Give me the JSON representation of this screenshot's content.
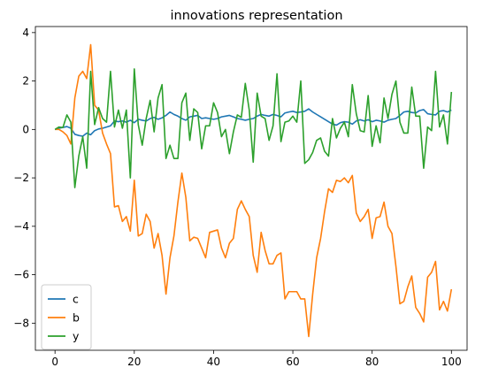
{
  "chart_data": {
    "type": "line",
    "title": "innovations representation",
    "xlabel": "",
    "ylabel": "",
    "xlim": [
      -4.95,
      103.95
    ],
    "ylim": [
      -9.12,
      4.25
    ],
    "xticks": [
      0,
      20,
      40,
      60,
      80,
      100
    ],
    "yticks": [
      -8,
      -6,
      -4,
      -2,
      0,
      2,
      4
    ],
    "grid": false,
    "legend": "lower-left",
    "series": [
      {
        "name": "c",
        "color": "#1f77b4",
        "values": [
          0,
          0.05,
          0.08,
          0.12,
          0.05,
          -0.2,
          -0.25,
          -0.28,
          -0.15,
          -0.22,
          -0.05,
          0.02,
          0.05,
          0.1,
          0.15,
          0.35,
          0.32,
          0.35,
          0.3,
          0.38,
          0.28,
          0.42,
          0.38,
          0.35,
          0.45,
          0.5,
          0.42,
          0.48,
          0.58,
          0.72,
          0.62,
          0.55,
          0.45,
          0.38,
          0.52,
          0.55,
          0.58,
          0.45,
          0.48,
          0.45,
          0.42,
          0.45,
          0.52,
          0.55,
          0.58,
          0.52,
          0.45,
          0.42,
          0.38,
          0.42,
          0.45,
          0.55,
          0.62,
          0.58,
          0.55,
          0.62,
          0.58,
          0.52,
          0.68,
          0.72,
          0.75,
          0.7,
          0.72,
          0.75,
          0.85,
          0.72,
          0.62,
          0.52,
          0.42,
          0.32,
          0.22,
          0.18,
          0.28,
          0.32,
          0.3,
          0.22,
          0.35,
          0.4,
          0.35,
          0.4,
          0.32,
          0.38,
          0.35,
          0.3,
          0.38,
          0.42,
          0.45,
          0.58,
          0.72,
          0.75,
          0.7,
          0.68,
          0.78,
          0.82,
          0.65,
          0.62,
          0.6,
          0.75,
          0.78,
          0.72,
          0.8
        ]
      },
      {
        "name": "b",
        "color": "#ff7f0e",
        "values": [
          0,
          0.0,
          -0.1,
          -0.25,
          -0.6,
          1.3,
          2.2,
          2.4,
          2.1,
          3.5,
          1.0,
          0.8,
          -0.15,
          -0.6,
          -1.0,
          -3.2,
          -3.15,
          -3.8,
          -3.6,
          -4.2,
          -2.1,
          -4.4,
          -4.3,
          -3.5,
          -3.8,
          -4.9,
          -4.3,
          -5.2,
          -6.8,
          -5.3,
          -4.4,
          -3.0,
          -1.8,
          -2.8,
          -4.6,
          -4.45,
          -4.5,
          -4.9,
          -5.3,
          -4.25,
          -4.2,
          -4.15,
          -4.9,
          -5.3,
          -4.7,
          -4.5,
          -3.3,
          -2.95,
          -3.3,
          -3.6,
          -5.2,
          -5.9,
          -4.25,
          -5.0,
          -5.55,
          -5.55,
          -5.2,
          -5.1,
          -7.0,
          -6.7,
          -6.7,
          -6.7,
          -7.0,
          -7.0,
          -8.55,
          -6.8,
          -5.3,
          -4.5,
          -3.4,
          -2.45,
          -2.6,
          -2.1,
          -2.15,
          -2.0,
          -2.2,
          -1.9,
          -3.45,
          -3.8,
          -3.6,
          -3.3,
          -4.5,
          -3.65,
          -3.6,
          -3.0,
          -4.0,
          -4.3,
          -5.65,
          -7.2,
          -7.1,
          -6.5,
          -6.05,
          -7.35,
          -7.6,
          -7.95,
          -6.1,
          -5.9,
          -5.45,
          -7.45,
          -7.1,
          -7.5,
          -6.6
        ]
      },
      {
        "name": "y",
        "color": "#2ca02c",
        "values": [
          0,
          0.1,
          0.08,
          0.6,
          0.3,
          -2.4,
          -1.1,
          -0.3,
          -1.6,
          2.4,
          0.2,
          0.9,
          0.45,
          0.3,
          2.4,
          0.1,
          0.8,
          0.05,
          0.8,
          -2.0,
          2.5,
          0.2,
          -0.65,
          0.45,
          1.2,
          -0.1,
          1.3,
          1.85,
          -1.2,
          -0.65,
          -1.2,
          -1.2,
          1.1,
          1.5,
          -0.45,
          0.85,
          0.7,
          -0.8,
          0.15,
          0.15,
          1.1,
          0.7,
          -0.3,
          0.0,
          -1.0,
          -0.1,
          0.6,
          0.5,
          1.9,
          0.8,
          -1.35,
          1.5,
          0.55,
          0.45,
          -0.45,
          0.15,
          2.3,
          -0.5,
          0.3,
          0.35,
          0.55,
          0.3,
          2.0,
          -1.4,
          -1.25,
          -0.95,
          -0.45,
          -0.35,
          -0.9,
          -1.1,
          0.45,
          -0.35,
          0.05,
          0.3,
          -0.3,
          1.85,
          0.65,
          -0.05,
          -0.1,
          1.4,
          -0.7,
          0.15,
          -0.55,
          1.3,
          0.45,
          1.45,
          2.0,
          0.3,
          -0.15,
          -0.15,
          1.75,
          0.55,
          0.55,
          -1.6,
          0.1,
          -0.05,
          2.4,
          0.1,
          0.6,
          -0.6,
          1.55
        ]
      }
    ]
  }
}
